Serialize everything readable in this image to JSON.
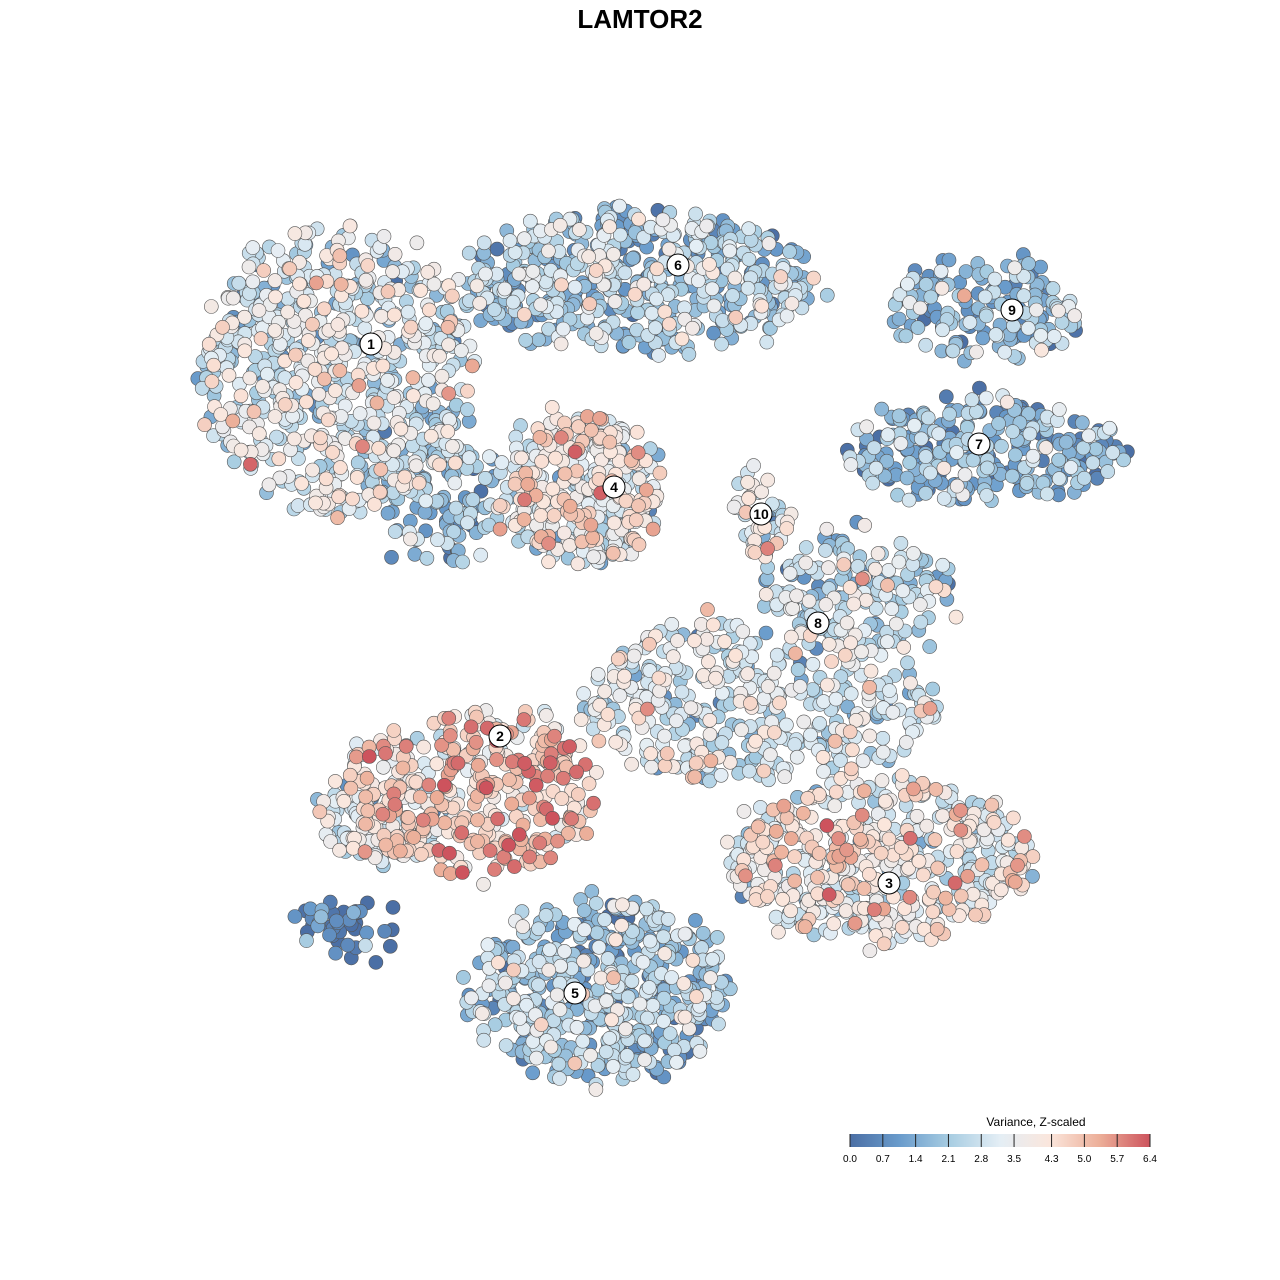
{
  "chart_data": {
    "type": "scatter",
    "title": "LAMTOR2",
    "legend": {
      "title": "Variance, Z-scaled",
      "ticks": [
        "0.0",
        "0.7",
        "1.4",
        "2.1",
        "2.8",
        "3.5",
        "4.3",
        "5.0",
        "5.7",
        "6.4"
      ],
      "range": [
        0.0,
        6.4
      ],
      "placement": "bottom-right"
    },
    "color_scale": [
      "#4b6fa5",
      "#6a9ccc",
      "#a8cde2",
      "#e4eef5",
      "#fbe6dc",
      "#ecae98",
      "#cd535d"
    ],
    "point_outline": "#555555",
    "clusters": [
      {
        "label": "1",
        "typical_value": 2.9
      },
      {
        "label": "2",
        "typical_value": 4.6
      },
      {
        "label": "3",
        "typical_value": 3.6
      },
      {
        "label": "4",
        "typical_value": 3.5
      },
      {
        "label": "5",
        "typical_value": 2.0
      },
      {
        "label": "6",
        "typical_value": 2.2
      },
      {
        "label": "7",
        "typical_value": 1.5
      },
      {
        "label": "8",
        "typical_value": 3.0
      },
      {
        "label": "9",
        "typical_value": 1.8
      },
      {
        "label": "10",
        "typical_value": 3.4
      }
    ],
    "axes": "none",
    "grid": false
  }
}
